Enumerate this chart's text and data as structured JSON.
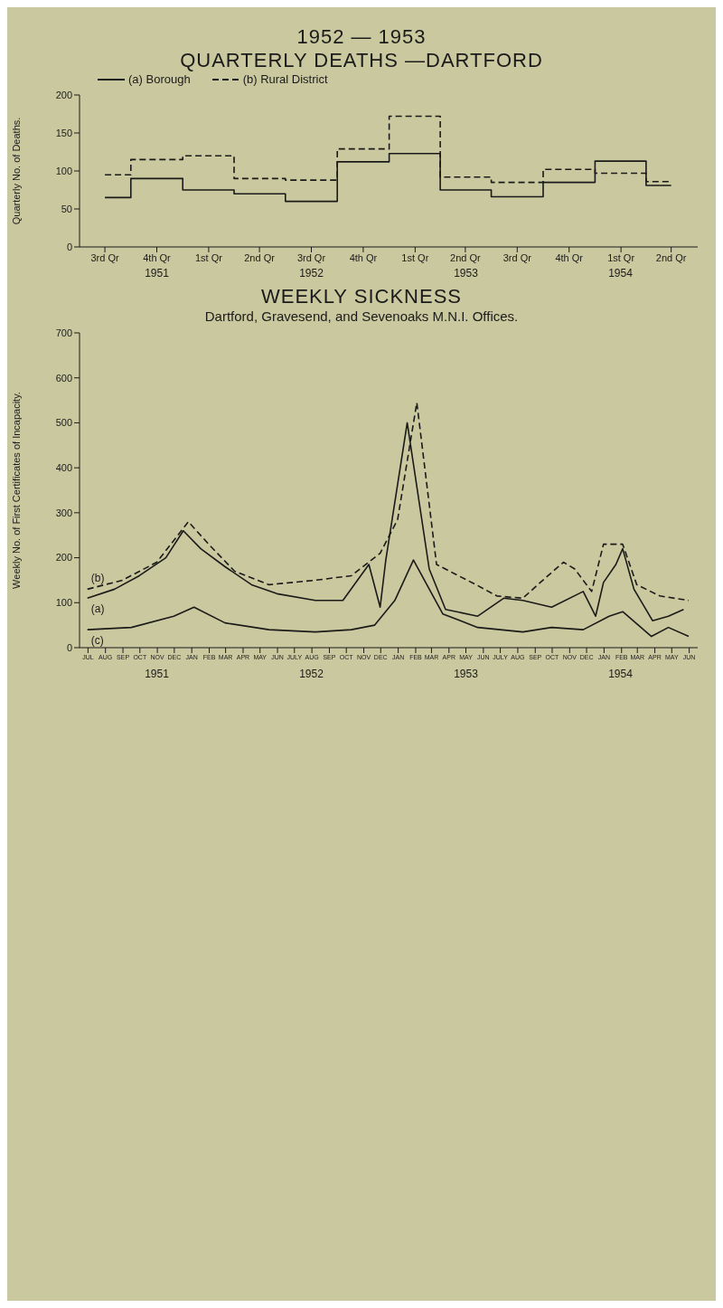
{
  "chart_data": [
    {
      "type": "step",
      "title": "1952 — 1953",
      "subtitle": "QUARTERLY DEATHS —DARTFORD",
      "ylabel": "Quarterly No. of Deaths.",
      "x": [
        "1951-08-15",
        "1951-11-15",
        "1952-02-15",
        "1952-05-15",
        "1952-08-15",
        "1952-11-15",
        "1953-02-15",
        "1953-05-15",
        "1953-08-15",
        "1953-11-15",
        "1954-02-15",
        "1954-05-15"
      ],
      "xlim": [
        "1951-07-01",
        "1954-07-01"
      ],
      "xticks": [
        {
          "value": "1951-08-15",
          "label": "3rd Qr"
        },
        {
          "value": "1951-11-15",
          "label": "4th Qr"
        },
        {
          "value": "1952-02-15",
          "label": "1st Qr"
        },
        {
          "value": "1952-05-15",
          "label": "2nd Qr"
        },
        {
          "value": "1952-08-15",
          "label": "3rd Qr"
        },
        {
          "value": "1952-11-15",
          "label": "4th Qr"
        },
        {
          "value": "1953-02-15",
          "label": "1st Qr"
        },
        {
          "value": "1953-05-15",
          "label": "2nd Qr"
        },
        {
          "value": "1953-08-15",
          "label": "3rd Qr"
        },
        {
          "value": "1953-11-15",
          "label": "4th Qr"
        },
        {
          "value": "1954-02-15",
          "label": "1st Qr"
        },
        {
          "value": "1954-05-15",
          "label": "2nd Qr"
        }
      ],
      "ylim": [
        0,
        200
      ],
      "yticks": [
        0,
        50,
        100,
        150,
        200
      ],
      "legend": "top left",
      "series": [
        {
          "name": "(a) Borough",
          "color": "#1a1a1a",
          "line_style": "solid",
          "values": [
            65,
            90,
            75,
            70,
            60,
            112,
            123,
            75,
            66,
            85,
            113,
            81
          ]
        },
        {
          "name": "(b) Rural District",
          "color": "#1a1a1a",
          "line_style": "dashed",
          "values": [
            95,
            115,
            120,
            90,
            88,
            129,
            172,
            92,
            85,
            102,
            97,
            86
          ]
        }
      ],
      "annotations": [
        "1951",
        "1952",
        "1953",
        "1954"
      ]
    },
    {
      "type": "line",
      "title": "WEEKLY SICKNESS",
      "subtitle": "Dartford, Gravesend, and Sevenoaks M.N.I. Offices.",
      "ylabel": "Weekly No. of First Certificates of Incapacity.",
      "xlim": [
        "1951-07-01",
        "1954-07-01"
      ],
      "xticks": [
        {
          "value": "1951-07-16",
          "label": "JUL"
        },
        {
          "value": "1951-08-16",
          "label": "AUG"
        },
        {
          "value": "1951-09-16",
          "label": "SEP"
        },
        {
          "value": "1951-10-16",
          "label": "OCT"
        },
        {
          "value": "1951-11-16",
          "label": "NOV"
        },
        {
          "value": "1951-12-16",
          "label": "DEC"
        },
        {
          "value": "1952-01-16",
          "label": "JAN"
        },
        {
          "value": "1952-02-16",
          "label": "FEB"
        },
        {
          "value": "1952-03-16",
          "label": "MAR"
        },
        {
          "value": "1952-04-16",
          "label": "APR"
        },
        {
          "value": "1952-05-16",
          "label": "MAY"
        },
        {
          "value": "1952-06-16",
          "label": "JUN"
        },
        {
          "value": "1952-07-16",
          "label": "JULY"
        },
        {
          "value": "1952-08-16",
          "label": "AUG"
        },
        {
          "value": "1952-09-16",
          "label": "SEP"
        },
        {
          "value": "1952-10-16",
          "label": "OCT"
        },
        {
          "value": "1952-11-16",
          "label": "NOV"
        },
        {
          "value": "1952-12-16",
          "label": "DEC"
        },
        {
          "value": "1953-01-16",
          "label": "JAN"
        },
        {
          "value": "1953-02-16",
          "label": "FEB"
        },
        {
          "value": "1953-03-16",
          "label": "MAR"
        },
        {
          "value": "1953-04-16",
          "label": "APR"
        },
        {
          "value": "1953-05-16",
          "label": "MAY"
        },
        {
          "value": "1953-06-16",
          "label": "JUN"
        },
        {
          "value": "1953-07-16",
          "label": "JULY"
        },
        {
          "value": "1953-08-16",
          "label": "AUG"
        },
        {
          "value": "1953-09-16",
          "label": "SEP"
        },
        {
          "value": "1953-10-16",
          "label": "OCT"
        },
        {
          "value": "1953-11-16",
          "label": "NOV"
        },
        {
          "value": "1953-12-16",
          "label": "DEC"
        },
        {
          "value": "1954-01-16",
          "label": "JAN"
        },
        {
          "value": "1954-02-16",
          "label": "FEB"
        },
        {
          "value": "1954-03-16",
          "label": "MAR"
        },
        {
          "value": "1954-04-16",
          "label": "APR"
        },
        {
          "value": "1954-05-16",
          "label": "MAY"
        },
        {
          "value": "1954-06-16",
          "label": "JUN"
        }
      ],
      "ylim": [
        0,
        700
      ],
      "yticks": [
        0,
        100,
        200,
        300,
        400,
        500,
        600,
        700
      ],
      "series": [
        {
          "name": "(a)",
          "color": "#1a1a1a",
          "line_style": "solid",
          "x": [
            "1951-07-15",
            "1951-09-01",
            "1951-10-15",
            "1951-12-01",
            "1952-01-01",
            "1952-02-01",
            "1952-03-15",
            "1952-05-01",
            "1952-06-15",
            "1952-08-22",
            "1952-10-10",
            "1952-11-25",
            "1952-12-15",
            "1952-12-25",
            "1953-02-01",
            "1953-03-12",
            "1953-04-10",
            "1953-06-06",
            "1953-07-22",
            "1953-08-25",
            "1953-10-15",
            "1953-12-10",
            "1954-01-01",
            "1954-01-15",
            "1954-02-06",
            "1954-02-18",
            "1954-03-10",
            "1954-04-12",
            "1954-05-10",
            "1954-06-06"
          ],
          "values": [
            110,
            130,
            160,
            200,
            260,
            220,
            180,
            140,
            120,
            105,
            105,
            185,
            90,
            195,
            500,
            175,
            85,
            70,
            110,
            105,
            90,
            125,
            70,
            145,
            185,
            220,
            130,
            60,
            70,
            85
          ]
        },
        {
          "name": "(b)",
          "color": "#1a1a1a",
          "line_style": "dashed",
          "x": [
            "1951-07-15",
            "1951-09-15",
            "1951-11-15",
            "1952-01-10",
            "1952-02-15",
            "1952-04-01",
            "1952-06-01",
            "1952-08-22",
            "1952-10-25",
            "1952-12-15",
            "1953-01-15",
            "1953-02-18",
            "1953-03-25",
            "1953-04-25",
            "1953-06-03",
            "1953-07-10",
            "1953-08-25",
            "1953-09-25",
            "1953-11-05",
            "1953-11-25",
            "1953-12-25",
            "1954-01-15",
            "1954-02-18",
            "1954-03-15",
            "1954-04-25",
            "1954-06-15"
          ],
          "values": [
            130,
            150,
            190,
            280,
            230,
            170,
            140,
            150,
            160,
            210,
            285,
            545,
            185,
            165,
            140,
            115,
            110,
            145,
            190,
            175,
            125,
            230,
            230,
            140,
            115,
            105
          ]
        },
        {
          "name": "(c)",
          "color": "#1a1a1a",
          "line_style": "solid",
          "x": [
            "1951-07-15",
            "1951-10-01",
            "1951-12-15",
            "1952-01-20",
            "1952-03-15",
            "1952-06-01",
            "1952-08-22",
            "1952-10-25",
            "1952-12-05",
            "1953-01-10",
            "1953-02-12",
            "1953-04-05",
            "1953-06-06",
            "1953-08-25",
            "1953-10-15",
            "1953-12-10",
            "1954-01-25",
            "1954-02-18",
            "1954-04-10",
            "1954-05-10",
            "1954-06-15"
          ],
          "values": [
            40,
            45,
            70,
            90,
            55,
            40,
            35,
            40,
            50,
            105,
            195,
            75,
            45,
            35,
            45,
            40,
            70,
            80,
            25,
            45,
            25
          ]
        }
      ],
      "annotations": [
        "1951",
        "1952",
        "1953",
        "1954"
      ]
    }
  ]
}
